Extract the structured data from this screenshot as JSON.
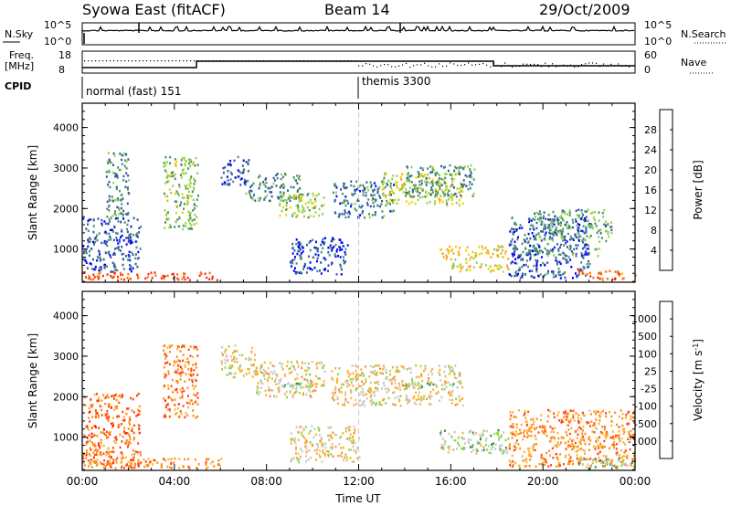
{
  "header": {
    "station": "Syowa East (fitACF)",
    "beam": "Beam 14",
    "date": "29/Oct/2009"
  },
  "top_panels": {
    "nsky_label": "N.Sky",
    "nsearch_label": "N.Search",
    "nsky_ticks": [
      "10^5",
      "10^0"
    ],
    "nsearch_ticks": [
      "10^5",
      "10^0"
    ],
    "freq_label_1": "Freq.",
    "freq_label_2": "[MHz]",
    "freq_ticks": [
      "18",
      "8"
    ],
    "nave_label": "Nave",
    "nave_ticks": [
      "60",
      "0"
    ],
    "cpid_label": "CPID",
    "cpid_modes": [
      {
        "name": "normal (fast) 151",
        "start_hour": 0
      },
      {
        "name": "themis 3300",
        "start_hour": 12
      }
    ]
  },
  "chart_data": [
    {
      "type": "heatmap",
      "title": "Power",
      "ylabel": "Slant Range [km]",
      "xlabel": "",
      "xlim": [
        0,
        24
      ],
      "ylim": [
        180,
        4600
      ],
      "x_ticks": [
        "00:00",
        "04:00",
        "08:00",
        "12:00",
        "16:00",
        "20:00",
        "00:00"
      ],
      "y_ticks": [
        1000,
        2000,
        3000,
        4000
      ],
      "colorbar": {
        "label": "Power [dB]",
        "ticks": [
          "28",
          "24",
          "20",
          "16",
          "12",
          "8",
          "4"
        ],
        "colors": [
          "#0000ff",
          "#2f57a8",
          "#4a8f6a",
          "#8fd44a",
          "#f5d000",
          "#ff9f20",
          "#ff6a00",
          "#ff2200"
        ],
        "range": [
          0,
          30
        ]
      },
      "regions": [
        {
          "t": [
            0.0,
            6.0
          ],
          "r": [
            250,
            450
          ],
          "level": 0.9
        },
        {
          "t": [
            0.0,
            2.5
          ],
          "r": [
            450,
            1800
          ],
          "level": 0.2
        },
        {
          "t": [
            1.0,
            2.0
          ],
          "r": [
            1800,
            3400
          ],
          "level": 0.3
        },
        {
          "t": [
            3.5,
            5.0
          ],
          "r": [
            1500,
            3300
          ],
          "level": 0.4
        },
        {
          "t": [
            6.0,
            7.2
          ],
          "r": [
            2600,
            3300
          ],
          "level": 0.15
        },
        {
          "t": [
            7.0,
            9.5
          ],
          "r": [
            2200,
            2900
          ],
          "level": 0.3
        },
        {
          "t": [
            8.5,
            10.5
          ],
          "r": [
            1800,
            2400
          ],
          "level": 0.45
        },
        {
          "t": [
            9.0,
            11.5
          ],
          "r": [
            400,
            1300
          ],
          "level": 0.15
        },
        {
          "t": [
            10.8,
            13.5
          ],
          "r": [
            1800,
            2700
          ],
          "level": 0.25
        },
        {
          "t": [
            13.0,
            16.5
          ],
          "r": [
            2100,
            2900
          ],
          "level": 0.5
        },
        {
          "t": [
            14.0,
            17.0
          ],
          "r": [
            2300,
            3100
          ],
          "level": 0.3
        },
        {
          "t": [
            15.5,
            18.5
          ],
          "r": [
            750,
            1100
          ],
          "level": 0.6
        },
        {
          "t": [
            16.0,
            18.5
          ],
          "r": [
            450,
            700
          ],
          "level": 0.55
        },
        {
          "t": [
            18.5,
            22.0
          ],
          "r": [
            300,
            1800
          ],
          "level": 0.2
        },
        {
          "t": [
            19.5,
            23.0
          ],
          "r": [
            1200,
            2000
          ],
          "level": 0.35
        },
        {
          "t": [
            19.0,
            22.5
          ],
          "r": [
            850,
            1050
          ],
          "level": 0.3
        },
        {
          "t": [
            21.5,
            24.0
          ],
          "r": [
            250,
            500
          ],
          "level": 0.85
        }
      ]
    },
    {
      "type": "heatmap",
      "title": "Velocity",
      "ylabel": "Slant Range [km]",
      "xlabel": "Time UT",
      "xlim": [
        0,
        24
      ],
      "ylim": [
        180,
        4600
      ],
      "x_ticks": [
        "00:00",
        "04:00",
        "08:00",
        "12:00",
        "16:00",
        "20:00",
        "00:00"
      ],
      "y_ticks": [
        1000,
        2000,
        3000,
        4000
      ],
      "colorbar": {
        "label": "Velocity [m s^-1]",
        "ticks": [
          "1000",
          "500",
          "100",
          "25",
          "-25",
          "-100",
          "-500",
          "-1000"
        ],
        "colors": [
          "#ff1a00",
          "#ff4a10",
          "#ff8c1a",
          "#ffb030",
          "#c8c8c8",
          "#8ed64a",
          "#3a8a4a",
          "#3050a0",
          "#1a2aa8"
        ],
        "range": [
          -1000,
          1000
        ]
      },
      "regions": [
        {
          "t": [
            0.0,
            2.5
          ],
          "r": [
            250,
            2100
          ],
          "level": 0.22
        },
        {
          "t": [
            0.0,
            6.0
          ],
          "r": [
            250,
            500
          ],
          "level": 0.3
        },
        {
          "t": [
            3.5,
            5.0
          ],
          "r": [
            1500,
            3300
          ],
          "level": 0.25
        },
        {
          "t": [
            6.0,
            7.5
          ],
          "r": [
            2500,
            3300
          ],
          "level": 0.45
        },
        {
          "t": [
            7.5,
            10.5
          ],
          "r": [
            2000,
            2900
          ],
          "level": 0.45
        },
        {
          "t": [
            8.5,
            10.0
          ],
          "r": [
            2250,
            2350
          ],
          "level": 0.56
        },
        {
          "t": [
            9.0,
            12.0
          ],
          "r": [
            400,
            1300
          ],
          "level": 0.45
        },
        {
          "t": [
            10.8,
            16.5
          ],
          "r": [
            1800,
            2800
          ],
          "level": 0.45
        },
        {
          "t": [
            14.0,
            16.5
          ],
          "r": [
            2250,
            2400
          ],
          "level": 0.6
        },
        {
          "t": [
            15.5,
            18.5
          ],
          "r": [
            600,
            1200
          ],
          "level": 0.58
        },
        {
          "t": [
            18.5,
            24.0
          ],
          "r": [
            300,
            1700
          ],
          "level": 0.3
        },
        {
          "t": [
            21.5,
            24.0
          ],
          "r": [
            250,
            500
          ],
          "level": 0.6
        }
      ]
    }
  ],
  "colors": {
    "axis": "#000000",
    "gap_line": "#c8c8c8"
  }
}
